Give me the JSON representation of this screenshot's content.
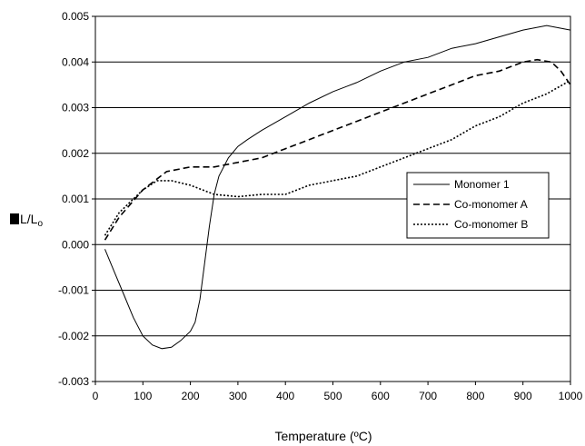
{
  "chart_data": {
    "type": "line",
    "xlabel": "Temperature (ºC)",
    "ylabel": "L/L",
    "ylabel_subscript": "o",
    "xlim": [
      0,
      1000
    ],
    "ylim": [
      -0.003,
      0.005
    ],
    "x_ticks": [
      0,
      100,
      200,
      300,
      400,
      500,
      600,
      700,
      800,
      900,
      1000
    ],
    "x_tick_labels": [
      "0",
      "100",
      "200",
      "300",
      "400",
      "500",
      "600",
      "700",
      "800",
      "900",
      "1000"
    ],
    "y_ticks": [
      -0.003,
      -0.002,
      -0.001,
      0.0,
      0.001,
      0.002,
      0.003,
      0.004,
      0.005
    ],
    "y_tick_labels": [
      "-0.003",
      "-0.002",
      "-0.001",
      "0.000",
      "0.001",
      "0.002",
      "0.003",
      "0.004",
      "0.005"
    ],
    "grid": "horizontal",
    "legend_position": "right",
    "series": [
      {
        "name": "Monomer 1",
        "style": "solid",
        "color": "#000000",
        "points": [
          [
            20,
            -0.0001
          ],
          [
            40,
            -0.0006
          ],
          [
            60,
            -0.0011
          ],
          [
            80,
            -0.0016
          ],
          [
            100,
            -0.002
          ],
          [
            120,
            -0.0022
          ],
          [
            140,
            -0.00228
          ],
          [
            160,
            -0.00225
          ],
          [
            180,
            -0.0021
          ],
          [
            200,
            -0.0019
          ],
          [
            210,
            -0.0017
          ],
          [
            220,
            -0.0012
          ],
          [
            230,
            -0.0004
          ],
          [
            240,
            0.0004
          ],
          [
            250,
            0.0011
          ],
          [
            260,
            0.0015
          ],
          [
            280,
            0.0019
          ],
          [
            300,
            0.00215
          ],
          [
            320,
            0.0023
          ],
          [
            350,
            0.0025
          ],
          [
            400,
            0.0028
          ],
          [
            450,
            0.0031
          ],
          [
            500,
            0.00335
          ],
          [
            550,
            0.00355
          ],
          [
            600,
            0.0038
          ],
          [
            650,
            0.004
          ],
          [
            700,
            0.0041
          ],
          [
            750,
            0.0043
          ],
          [
            800,
            0.0044
          ],
          [
            850,
            0.00455
          ],
          [
            900,
            0.0047
          ],
          [
            950,
            0.0048
          ],
          [
            975,
            0.00475
          ],
          [
            1000,
            0.0047
          ]
        ]
      },
      {
        "name": "Co-monomer A",
        "style": "dashed",
        "color": "#000000",
        "points": [
          [
            20,
            0.0001
          ],
          [
            50,
            0.0006
          ],
          [
            100,
            0.0012
          ],
          [
            150,
            0.0016
          ],
          [
            200,
            0.0017
          ],
          [
            250,
            0.0017
          ],
          [
            300,
            0.0018
          ],
          [
            350,
            0.0019
          ],
          [
            400,
            0.0021
          ],
          [
            450,
            0.0023
          ],
          [
            500,
            0.0025
          ],
          [
            550,
            0.0027
          ],
          [
            600,
            0.0029
          ],
          [
            650,
            0.0031
          ],
          [
            700,
            0.0033
          ],
          [
            750,
            0.0035
          ],
          [
            800,
            0.0037
          ],
          [
            850,
            0.0038
          ],
          [
            900,
            0.004
          ],
          [
            930,
            0.00405
          ],
          [
            960,
            0.004
          ],
          [
            980,
            0.0038
          ],
          [
            1000,
            0.0035
          ]
        ]
      },
      {
        "name": "Co-monomer B",
        "style": "dotted",
        "color": "#000000",
        "points": [
          [
            20,
            0.0002
          ],
          [
            50,
            0.0007
          ],
          [
            100,
            0.0012
          ],
          [
            130,
            0.0014
          ],
          [
            160,
            0.0014
          ],
          [
            200,
            0.0013
          ],
          [
            250,
            0.0011
          ],
          [
            300,
            0.00105
          ],
          [
            350,
            0.0011
          ],
          [
            400,
            0.0011
          ],
          [
            450,
            0.0013
          ],
          [
            500,
            0.0014
          ],
          [
            550,
            0.0015
          ],
          [
            600,
            0.0017
          ],
          [
            650,
            0.0019
          ],
          [
            700,
            0.0021
          ],
          [
            750,
            0.0023
          ],
          [
            800,
            0.0026
          ],
          [
            850,
            0.0028
          ],
          [
            900,
            0.0031
          ],
          [
            950,
            0.0033
          ],
          [
            1000,
            0.0036
          ]
        ]
      }
    ]
  }
}
